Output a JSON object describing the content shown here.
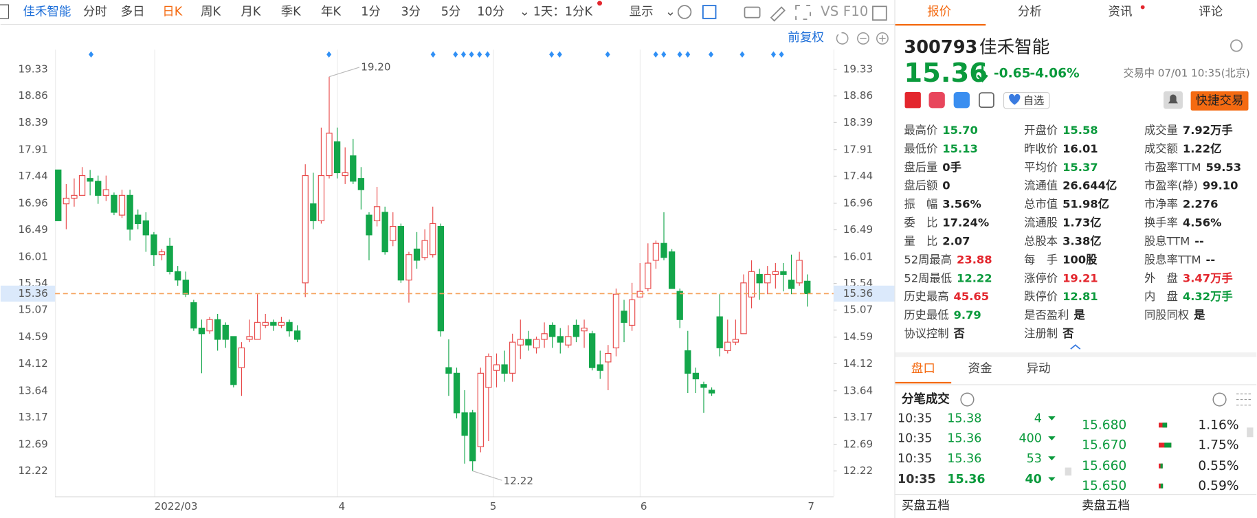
{
  "toolbar": {
    "stock": "佳禾智能",
    "periods": [
      "分时",
      "多日",
      "日K",
      "周K",
      "月K",
      "季K",
      "年K",
      "1分",
      "3分",
      "5分",
      "10分"
    ],
    "interval": "1天：1分K",
    "display": "显示",
    "vs": "VS",
    "f10": "F10"
  },
  "panel_tabs": [
    "报价",
    "分析",
    "资讯",
    "评论"
  ],
  "chart": {
    "type": "candlestick",
    "adjust": "前复权",
    "ylim": [
      11.77,
      19.68
    ],
    "yticks": [
      19.33,
      18.86,
      18.39,
      17.91,
      17.44,
      16.96,
      16.49,
      16.01,
      15.54,
      15.07,
      14.59,
      14.12,
      13.64,
      13.17,
      12.69,
      12.22
    ],
    "x_labels": [
      "2022/03",
      "4",
      "5",
      "6",
      "7"
    ],
    "last": 15.36,
    "high_label": {
      "value": 19.2,
      "label": "19.20"
    },
    "low_label": {
      "value": 12.22,
      "label": "12.22"
    },
    "up_color": "#e84a4a",
    "down_color": "#13a64a",
    "candles": [
      [
        17.55,
        17.55,
        16.65,
        16.65
      ],
      [
        16.95,
        17.3,
        16.5,
        17.05
      ],
      [
        17.05,
        17.4,
        16.9,
        17.1
      ],
      [
        17.1,
        17.6,
        17.1,
        17.45
      ],
      [
        17.4,
        17.55,
        17.1,
        17.35
      ],
      [
        17.35,
        17.45,
        16.95,
        17.1
      ],
      [
        17.1,
        17.45,
        17.0,
        17.2
      ],
      [
        17.1,
        17.15,
        16.75,
        16.8
      ],
      [
        16.75,
        17.2,
        16.7,
        17.1
      ],
      [
        17.1,
        17.2,
        16.3,
        16.5
      ],
      [
        16.75,
        16.85,
        16.5,
        16.6
      ],
      [
        16.65,
        16.8,
        16.1,
        16.4
      ],
      [
        16.4,
        16.45,
        15.85,
        16.05
      ],
      [
        16.05,
        16.15,
        15.95,
        16.1
      ],
      [
        16.2,
        16.35,
        15.7,
        15.75
      ],
      [
        15.75,
        15.85,
        15.5,
        15.6
      ],
      [
        15.6,
        15.75,
        15.3,
        15.35
      ],
      [
        15.2,
        15.25,
        14.7,
        14.75
      ],
      [
        14.75,
        14.9,
        13.95,
        14.65
      ],
      [
        14.7,
        14.95,
        14.65,
        14.9
      ],
      [
        14.9,
        15.0,
        14.35,
        14.55
      ],
      [
        14.8,
        14.85,
        14.4,
        14.55
      ],
      [
        14.6,
        14.6,
        13.7,
        13.75
      ],
      [
        14.05,
        14.5,
        13.55,
        14.4
      ],
      [
        14.55,
        14.9,
        14.5,
        14.6
      ],
      [
        14.55,
        15.35,
        14.55,
        14.85
      ],
      [
        14.8,
        15.0,
        14.75,
        14.85
      ],
      [
        14.85,
        14.9,
        14.7,
        14.8
      ],
      [
        14.8,
        14.95,
        14.75,
        14.85
      ],
      [
        14.85,
        14.9,
        14.6,
        14.7
      ],
      [
        14.7,
        14.8,
        14.5,
        14.55
      ],
      [
        15.55,
        17.65,
        15.3,
        17.45
      ],
      [
        16.95,
        17.5,
        16.5,
        16.65
      ],
      [
        16.65,
        18.3,
        16.6,
        17.45
      ],
      [
        17.45,
        19.2,
        17.4,
        18.2
      ],
      [
        18.05,
        18.3,
        17.4,
        17.5
      ],
      [
        17.45,
        17.95,
        17.3,
        17.5
      ],
      [
        17.8,
        18.1,
        17.3,
        17.35
      ],
      [
        17.4,
        17.6,
        16.85,
        17.2
      ],
      [
        16.75,
        16.8,
        15.95,
        16.4
      ],
      [
        16.65,
        17.25,
        16.55,
        16.9
      ],
      [
        16.8,
        16.9,
        16.05,
        16.1
      ],
      [
        16.3,
        16.8,
        16.2,
        16.55
      ],
      [
        16.55,
        16.6,
        15.55,
        15.6
      ],
      [
        15.6,
        16.1,
        15.2,
        16.05
      ],
      [
        16.15,
        16.45,
        15.8,
        15.95
      ],
      [
        16.0,
        16.5,
        15.95,
        16.3
      ],
      [
        16.05,
        16.9,
        16.0,
        16.6
      ],
      [
        16.55,
        16.6,
        14.6,
        14.7
      ],
      [
        14.05,
        14.55,
        13.55,
        13.95
      ],
      [
        13.95,
        14.05,
        13.15,
        13.25
      ],
      [
        13.25,
        13.65,
        12.35,
        12.85
      ],
      [
        13.25,
        13.3,
        12.22,
        12.4
      ],
      [
        12.65,
        14.05,
        12.55,
        13.95
      ],
      [
        13.7,
        14.3,
        12.75,
        14.25
      ],
      [
        14.0,
        14.3,
        13.7,
        14.1
      ],
      [
        14.1,
        14.35,
        13.8,
        13.95
      ],
      [
        13.95,
        14.65,
        13.8,
        14.5
      ],
      [
        14.45,
        14.9,
        14.2,
        14.55
      ],
      [
        14.55,
        14.7,
        14.35,
        14.45
      ],
      [
        14.4,
        14.6,
        14.3,
        14.55
      ],
      [
        14.55,
        14.85,
        14.4,
        14.65
      ],
      [
        14.8,
        14.85,
        14.4,
        14.6
      ],
      [
        14.6,
        14.75,
        14.3,
        14.5
      ],
      [
        14.45,
        14.8,
        14.4,
        14.6
      ],
      [
        14.8,
        14.9,
        14.5,
        14.6
      ],
      [
        14.7,
        14.9,
        14.4,
        14.75
      ],
      [
        14.65,
        14.7,
        14.0,
        14.05
      ],
      [
        14.1,
        14.35,
        13.85,
        14.0
      ],
      [
        14.15,
        14.45,
        13.65,
        14.3
      ],
      [
        14.4,
        15.45,
        14.25,
        15.35
      ],
      [
        15.05,
        15.25,
        14.5,
        14.85
      ],
      [
        14.8,
        15.55,
        14.7,
        15.25
      ],
      [
        15.3,
        15.9,
        15.3,
        15.4
      ],
      [
        15.45,
        16.25,
        15.4,
        15.9
      ],
      [
        15.95,
        16.3,
        15.8,
        16.25
      ],
      [
        16.25,
        16.8,
        15.95,
        16.0
      ],
      [
        16.1,
        16.15,
        15.45,
        15.45
      ],
      [
        15.4,
        15.45,
        14.75,
        14.9
      ],
      [
        14.35,
        14.7,
        13.6,
        13.95
      ],
      [
        13.95,
        14.05,
        13.6,
        13.85
      ],
      [
        13.75,
        13.8,
        13.25,
        13.7
      ],
      [
        13.65,
        13.7,
        13.55,
        13.6
      ],
      [
        14.95,
        15.35,
        14.25,
        14.4
      ],
      [
        14.35,
        14.9,
        14.3,
        14.5
      ],
      [
        14.5,
        14.9,
        14.45,
        14.55
      ],
      [
        14.65,
        15.7,
        14.65,
        15.55
      ],
      [
        15.3,
        15.95,
        15.1,
        15.75
      ],
      [
        15.7,
        15.8,
        15.25,
        15.55
      ],
      [
        15.55,
        15.85,
        15.35,
        15.7
      ],
      [
        15.7,
        15.9,
        15.45,
        15.75
      ],
      [
        15.75,
        15.9,
        15.4,
        15.7
      ],
      [
        15.6,
        16.05,
        15.35,
        15.45
      ],
      [
        15.55,
        16.1,
        15.5,
        15.95
      ],
      [
        15.58,
        15.7,
        15.13,
        15.36
      ]
    ]
  },
  "quote": {
    "code": "300793",
    "name": "佳禾智能",
    "price": "15.36",
    "change": "-0.65",
    "change_pct": "-4.06%",
    "status": "交易中 07/01 10:35(北京)",
    "watch": "自选",
    "trade": "快捷交易"
  },
  "stats": [
    [
      {
        "label": "最高价",
        "value": "15.70",
        "color": "#0a9a3c"
      },
      {
        "label": "最低价",
        "value": "15.13",
        "color": "#0a9a3c"
      },
      {
        "label": "盘后量",
        "value": "0手"
      },
      {
        "label": "盘后额",
        "value": "0"
      },
      {
        "label": "振　幅",
        "value": "3.56%"
      },
      {
        "label": "委　比",
        "value": "17.24%"
      },
      {
        "label": "量　比",
        "value": "2.07"
      },
      {
        "label": "52周最高",
        "value": "23.88",
        "color": "#e3262d"
      },
      {
        "label": "52周最低",
        "value": "12.22",
        "color": "#0a9a3c"
      },
      {
        "label": "历史最高",
        "value": "45.65",
        "color": "#e3262d"
      },
      {
        "label": "历史最低",
        "value": "9.79",
        "color": "#0a9a3c"
      },
      {
        "label": "协议控制",
        "value": "否"
      }
    ],
    [
      {
        "label": "开盘价",
        "value": "15.58",
        "color": "#0a9a3c"
      },
      {
        "label": "昨收价",
        "value": "16.01"
      },
      {
        "label": "平均价",
        "value": "15.37",
        "color": "#0a9a3c"
      },
      {
        "label": "流通值",
        "value": "26.644亿"
      },
      {
        "label": "总市值",
        "value": "51.98亿"
      },
      {
        "label": "流通股",
        "value": "1.73亿"
      },
      {
        "label": "总股本",
        "value": "3.38亿"
      },
      {
        "label": "每　手",
        "value": "100股"
      },
      {
        "label": "涨停价",
        "value": "19.21",
        "color": "#e3262d"
      },
      {
        "label": "跌停价",
        "value": "12.81",
        "color": "#0a9a3c"
      },
      {
        "label": "是否盈利",
        "value": "是"
      },
      {
        "label": "注册制",
        "value": "否"
      }
    ],
    [
      {
        "label": "成交量",
        "value": "7.92万手"
      },
      {
        "label": "成交额",
        "value": "1.22亿"
      },
      {
        "label": "市盈率TTM",
        "value": "59.53"
      },
      {
        "label": "市盈率(静)",
        "value": "99.10"
      },
      {
        "label": "市净率",
        "value": "2.276"
      },
      {
        "label": "换手率",
        "value": "4.56%"
      },
      {
        "label": "股息TTM",
        "value": "--"
      },
      {
        "label": "股息率TTM",
        "value": "--"
      },
      {
        "label": "外　盘",
        "value": "3.47万手",
        "color": "#e3262d"
      },
      {
        "label": "内　盘",
        "value": "4.32万手",
        "color": "#0a9a3c"
      },
      {
        "label": "同股同权",
        "value": "是"
      }
    ]
  ],
  "sub_tabs": [
    "盘口",
    "资金",
    "异动"
  ],
  "ticks_title": "分笔成交",
  "trades": [
    [
      "10:35",
      "15.38",
      "4"
    ],
    [
      "10:35",
      "15.36",
      "400"
    ],
    [
      "10:35",
      "15.36",
      "53"
    ],
    [
      "10:35",
      "15.36",
      "40"
    ]
  ],
  "levels": [
    [
      "15.680",
      "1.16%"
    ],
    [
      "15.670",
      "1.75%"
    ],
    [
      "15.660",
      "0.55%"
    ],
    [
      "15.650",
      "0.59%"
    ]
  ],
  "footer": [
    "买盘五档",
    "卖盘五档"
  ]
}
